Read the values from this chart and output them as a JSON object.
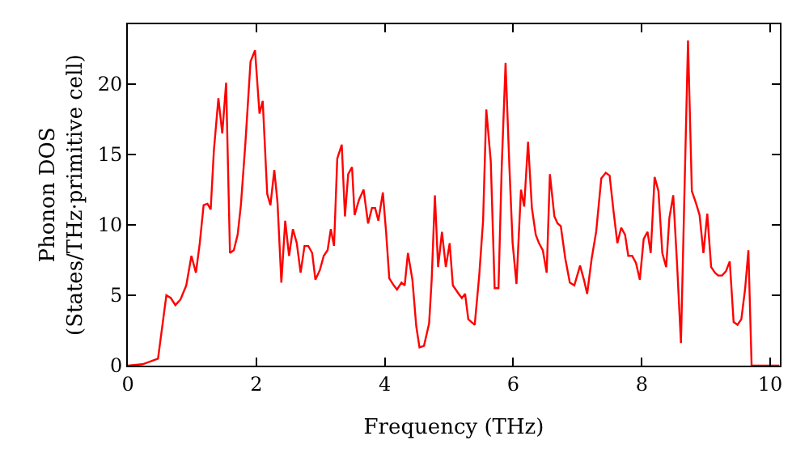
{
  "chart_data": {
    "type": "line",
    "xlabel": "Frequency (THz)",
    "ylabel": "Phonon DOS\n(States/THz·primitive cell)",
    "xlim": [
      0,
      10.15
    ],
    "ylim": [
      0,
      24.25
    ],
    "xticks": [
      0,
      2,
      4,
      6,
      8,
      10
    ],
    "yticks": [
      0,
      5,
      10,
      15,
      20
    ],
    "marker": "none",
    "line_style": "solid",
    "x": [
      0,
      0.23,
      0.47,
      0.6,
      0.67,
      0.74,
      0.82,
      0.91,
      0.99,
      1.06,
      1.12,
      1.18,
      1.24,
      1.29,
      1.34,
      1.41,
      1.47,
      1.53,
      1.59,
      1.65,
      1.71,
      1.76,
      1.83,
      1.91,
      1.98,
      2.05,
      2.1,
      2.17,
      2.22,
      2.28,
      2.33,
      2.39,
      2.45,
      2.51,
      2.57,
      2.63,
      2.69,
      2.75,
      2.81,
      2.87,
      2.92,
      2.99,
      3.05,
      3.11,
      3.16,
      3.21,
      3.26,
      3.33,
      3.38,
      3.43,
      3.49,
      3.53,
      3.6,
      3.67,
      3.74,
      3.8,
      3.85,
      3.9,
      3.97,
      4.02,
      4.07,
      4.14,
      4.19,
      4.26,
      4.31,
      4.36,
      4.43,
      4.49,
      4.54,
      4.61,
      4.69,
      4.73,
      4.78,
      4.83,
      4.89,
      4.95,
      5.01,
      5.06,
      5.15,
      5.2,
      5.25,
      5.3,
      5.4,
      5.47,
      5.53,
      5.58,
      5.65,
      5.71,
      5.77,
      5.82,
      5.88,
      5.94,
      5.99,
      6.05,
      6.12,
      6.17,
      6.23,
      6.29,
      6.35,
      6.4,
      6.46,
      6.52,
      6.57,
      6.64,
      6.69,
      6.74,
      6.81,
      6.88,
      6.95,
      7.04,
      7.1,
      7.15,
      7.22,
      7.29,
      7.37,
      7.44,
      7.5,
      7.56,
      7.62,
      7.68,
      7.74,
      7.79,
      7.85,
      7.91,
      7.97,
      8.03,
      8.09,
      8.14,
      8.2,
      8.26,
      8.32,
      8.38,
      8.43,
      8.49,
      8.55,
      8.61,
      8.72,
      8.78,
      8.84,
      8.9,
      8.96,
      9.02,
      9.08,
      9.14,
      9.19,
      9.25,
      9.31,
      9.37,
      9.43,
      9.49,
      9.55,
      9.61,
      9.66,
      9.71,
      10.14
    ],
    "series": [
      {
        "color": "#ff0000",
        "values": [
          0,
          0.1,
          0.5,
          5.0,
          4.8,
          4.3,
          4.7,
          5.7,
          7.8,
          6.6,
          8.7,
          11.4,
          11.5,
          11.1,
          15.3,
          19.0,
          16.5,
          20.1,
          8.0,
          8.2,
          9.3,
          11.4,
          15.8,
          21.6,
          22.4,
          17.9,
          18.8,
          12.2,
          11.4,
          13.9,
          11.6,
          5.9,
          10.3,
          7.8,
          9.7,
          8.7,
          6.6,
          8.5,
          8.5,
          8.0,
          6.1,
          6.8,
          7.8,
          8.2,
          9.7,
          8.5,
          14.7,
          15.7,
          10.6,
          13.6,
          14.1,
          10.7,
          11.8,
          12.5,
          10.1,
          11.2,
          11.2,
          10.3,
          12.3,
          9.5,
          6.2,
          5.7,
          5.4,
          5.9,
          5.7,
          8.0,
          6.1,
          2.8,
          1.3,
          1.4,
          3.0,
          6.1,
          12.1,
          7.0,
          9.5,
          7.0,
          8.7,
          5.7,
          5.1,
          4.8,
          5.1,
          3.3,
          2.9,
          6.4,
          10.3,
          18.2,
          14.5,
          5.5,
          5.5,
          14.1,
          21.5,
          14.1,
          8.7,
          5.8,
          12.5,
          11.3,
          15.9,
          11.2,
          9.3,
          8.7,
          8.2,
          6.6,
          13.6,
          10.6,
          10.1,
          9.9,
          7.6,
          5.9,
          5.7,
          7.1,
          6.1,
          5.1,
          7.6,
          9.5,
          13.3,
          13.7,
          13.5,
          11.0,
          8.7,
          9.8,
          9.3,
          7.8,
          7.8,
          7.3,
          6.1,
          9.0,
          9.5,
          8.0,
          13.4,
          12.4,
          8.0,
          7.0,
          10.5,
          12.1,
          7.2,
          1.6,
          23.1,
          12.4,
          11.6,
          10.7,
          8.0,
          10.8,
          7.0,
          6.6,
          6.4,
          6.4,
          6.7,
          7.4,
          3.1,
          2.9,
          3.3,
          5.5,
          8.2,
          0,
          0
        ]
      }
    ]
  }
}
